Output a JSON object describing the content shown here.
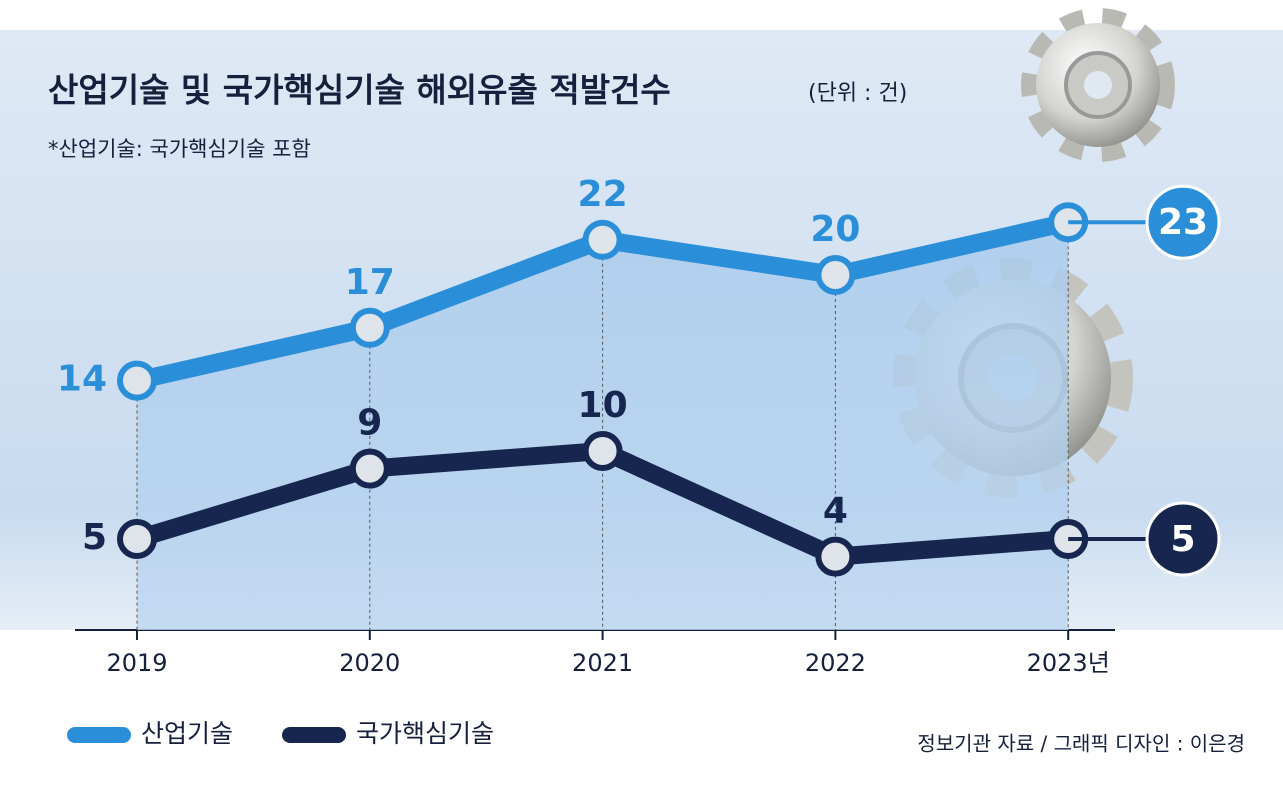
{
  "chart_data": {
    "type": "line",
    "title": "산업기술 및 국가핵심기술 해외유출 적발건수",
    "unit": "(단위 : 건)",
    "subtitle": "*산업기술: 국가핵심기술 포함",
    "categories": [
      "2019",
      "2020",
      "2021",
      "2022",
      "2023년"
    ],
    "series": [
      {
        "name": "산업기술",
        "color": "#2a8fd8",
        "values": [
          14,
          17,
          22,
          20,
          23
        ]
      },
      {
        "name": "국가핵심기술",
        "color": "#17264f",
        "values": [
          5,
          9,
          10,
          4,
          5
        ]
      }
    ],
    "source": "정보기관 자료 / 그래픽 디자인 : 이은경"
  }
}
